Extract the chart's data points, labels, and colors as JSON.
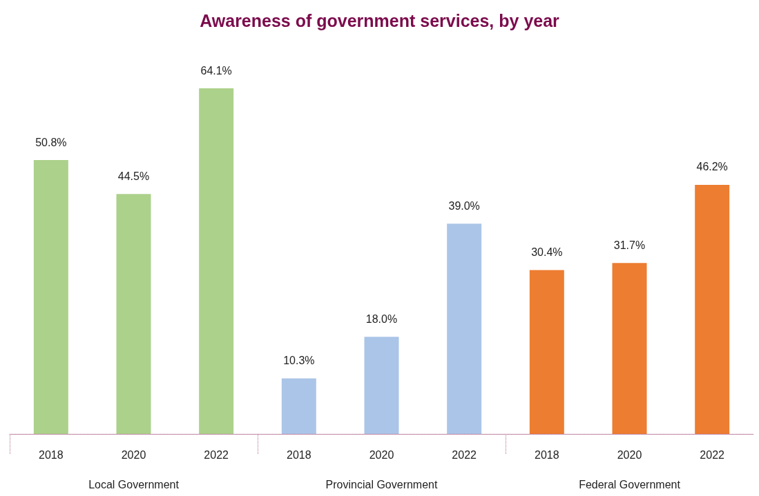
{
  "chart_data": {
    "type": "bar",
    "title": "Awareness of government services, by year",
    "categories": [
      "2018",
      "2020",
      "2022",
      "2018",
      "2020",
      "2022",
      "2018",
      "2020",
      "2022"
    ],
    "values": [
      50.8,
      44.5,
      64.1,
      10.3,
      18.0,
      39.0,
      30.4,
      31.7,
      46.2
    ],
    "colors": [
      "#acd18b",
      "#acd18b",
      "#acd18b",
      "#abc5e8",
      "#abc5e8",
      "#abc5e8",
      "#ed7d31",
      "#ed7d31",
      "#ed7d31"
    ],
    "value_labels": [
      "50.8%",
      "44.5%",
      "64.1%",
      "10.3%",
      "18.0%",
      "39.0%",
      "30.4%",
      "31.7%",
      "46.2%"
    ],
    "annotations": [
      "Local Government",
      "Provincial Government",
      "Federal Government"
    ],
    "grid": false
  }
}
